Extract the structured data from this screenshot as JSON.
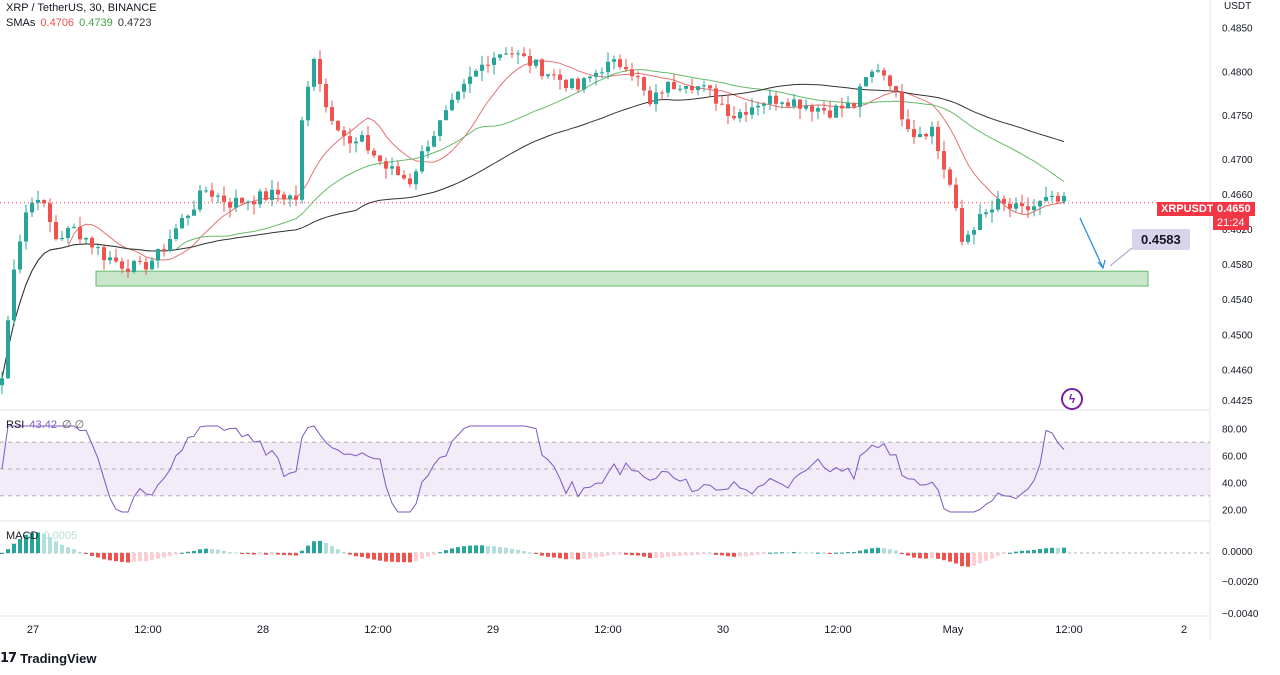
{
  "header": {
    "symbol": "XRP / TetherUS, 30, BINANCE",
    "sma_label": "SMAs",
    "sma_values": [
      "0.4706",
      "0.4739",
      "0.4723"
    ],
    "currency": "USDT"
  },
  "colors": {
    "up": "#26a69a",
    "down": "#ef5350",
    "sma_red": "#e57373",
    "sma_green": "#66bb6a",
    "sma_black": "#333333",
    "rsi": "#7e57c2",
    "support_fill": "#c8e6c9",
    "support_border": "#66bb6a",
    "arrow": "#1e88e5",
    "badge_red": "#f23645"
  },
  "badges": {
    "ticker": "XRPUSDT",
    "last_price": "0.4650",
    "countdown": "21:24",
    "target": "0.4583"
  },
  "brand": "TradingView",
  "rsi_pane": {
    "label": "RSI",
    "value": "43.42",
    "flags": "∅ ∅",
    "ticks": [
      "80.00",
      "60.00",
      "40.00",
      "20.00"
    ]
  },
  "macd_pane": {
    "label": "MACD",
    "value": "0.0005",
    "ticks": [
      "0.0000",
      "−0.0020",
      "−0.0040"
    ]
  },
  "chart_data": {
    "type": "candlestick",
    "title": "XRP / TetherUS, 30, BINANCE",
    "price_ticks": [
      "0.4850",
      "0.4800",
      "0.4750",
      "0.4700",
      "0.4660",
      "0.4620",
      "0.4580",
      "0.4540",
      "0.4500",
      "0.4460",
      "0.4425"
    ],
    "price_tick_values": [
      0.485,
      0.48,
      0.475,
      0.47,
      0.466,
      0.462,
      0.458,
      0.454,
      0.45,
      0.446,
      0.4425
    ],
    "x_labels": [
      "27",
      "12:00",
      "28",
      "12:00",
      "29",
      "12:00",
      "30",
      "12:00",
      "May",
      "12:00",
      "2"
    ],
    "last_price": 0.465,
    "support_zone": [
      0.4555,
      0.4572
    ],
    "target_price": 0.4583,
    "anchors": [
      [
        0,
        0.445
      ],
      [
        2,
        0.458
      ],
      [
        4,
        0.464
      ],
      [
        6,
        0.466
      ],
      [
        9,
        0.461
      ],
      [
        12,
        0.462
      ],
      [
        14,
        0.461
      ],
      [
        17,
        0.459
      ],
      [
        20,
        0.458
      ],
      [
        23,
        0.4575
      ],
      [
        26,
        0.459
      ],
      [
        30,
        0.463
      ],
      [
        34,
        0.4665
      ],
      [
        38,
        0.465
      ],
      [
        42,
        0.4655
      ],
      [
        46,
        0.466
      ],
      [
        49,
        0.4655
      ],
      [
        50,
        0.474
      ],
      [
        52,
        0.482
      ],
      [
        54,
        0.476
      ],
      [
        56,
        0.474
      ],
      [
        58,
        0.4715
      ],
      [
        60,
        0.472
      ],
      [
        64,
        0.469
      ],
      [
        68,
        0.4675
      ],
      [
        71,
        0.472
      ],
      [
        74,
        0.475
      ],
      [
        78,
        0.479
      ],
      [
        81,
        0.4815
      ],
      [
        84,
        0.4825
      ],
      [
        88,
        0.481
      ],
      [
        92,
        0.4795
      ],
      [
        96,
        0.478
      ],
      [
        100,
        0.4805
      ],
      [
        104,
        0.481
      ],
      [
        106,
        0.479
      ],
      [
        108,
        0.476
      ],
      [
        110,
        0.478
      ],
      [
        114,
        0.479
      ],
      [
        118,
        0.4775
      ],
      [
        122,
        0.475
      ],
      [
        126,
        0.4765
      ],
      [
        130,
        0.477
      ],
      [
        134,
        0.4762
      ],
      [
        138,
        0.4755
      ],
      [
        142,
        0.4762
      ],
      [
        144,
        0.479
      ],
      [
        146,
        0.4805
      ],
      [
        148,
        0.479
      ],
      [
        150,
        0.4752
      ],
      [
        152,
        0.473
      ],
      [
        155,
        0.4735
      ],
      [
        156,
        0.471
      ],
      [
        158,
        0.467
      ],
      [
        160,
        0.4605
      ],
      [
        162,
        0.4625
      ],
      [
        166,
        0.4648
      ],
      [
        170,
        0.464
      ],
      [
        174,
        0.4652
      ],
      [
        177,
        0.465
      ]
    ],
    "series": [
      {
        "name": "SMA 1",
        "value": 0.4706,
        "color": "red"
      },
      {
        "name": "SMA 2",
        "value": 0.4739,
        "color": "green"
      },
      {
        "name": "SMA 3",
        "value": 0.4723,
        "color": "black"
      },
      {
        "name": "RSI",
        "value": 43.42
      },
      {
        "name": "MACD",
        "value": 0.0005
      }
    ]
  }
}
